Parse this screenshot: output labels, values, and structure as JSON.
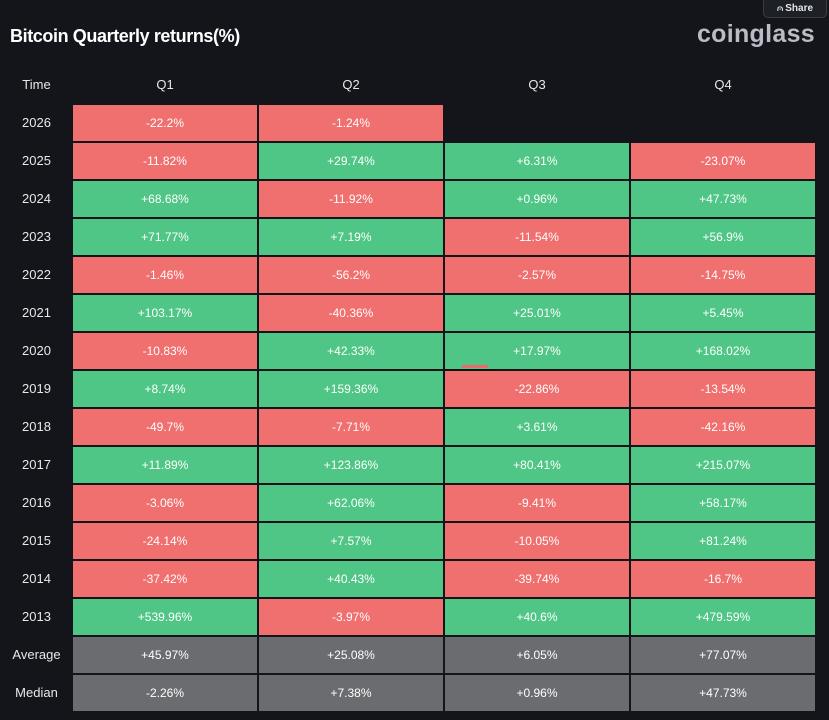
{
  "share_label": "Share",
  "title": "Bitcoin Quarterly returns(%)",
  "brand": "coinglass",
  "colors": {
    "background": "#13151b",
    "positive": "#4fc686",
    "negative": "#f06f6f",
    "stat": "#6b6c70"
  },
  "chart_data": {
    "type": "table",
    "title": "Bitcoin Quarterly returns(%)",
    "columns": [
      "Time",
      "Q1",
      "Q2",
      "Q3",
      "Q4"
    ],
    "rows": [
      {
        "label": "2026",
        "values": [
          "-22.2%",
          "-1.24%",
          "",
          ""
        ]
      },
      {
        "label": "2025",
        "values": [
          "-11.82%",
          "+29.74%",
          "+6.31%",
          "-23.07%"
        ]
      },
      {
        "label": "2024",
        "values": [
          "+68.68%",
          "-11.92%",
          "+0.96%",
          "+47.73%"
        ]
      },
      {
        "label": "2023",
        "values": [
          "+71.77%",
          "+7.19%",
          "-11.54%",
          "+56.9%"
        ]
      },
      {
        "label": "2022",
        "values": [
          "-1.46%",
          "-56.2%",
          "-2.57%",
          "-14.75%"
        ]
      },
      {
        "label": "2021",
        "values": [
          "+103.17%",
          "-40.36%",
          "+25.01%",
          "+5.45%"
        ]
      },
      {
        "label": "2020",
        "values": [
          "-10.83%",
          "+42.33%",
          "+17.97%",
          "+168.02%"
        ]
      },
      {
        "label": "2019",
        "values": [
          "+8.74%",
          "+159.36%",
          "-22.86%",
          "-13.54%"
        ]
      },
      {
        "label": "2018",
        "values": [
          "-49.7%",
          "-7.71%",
          "+3.61%",
          "-42.16%"
        ]
      },
      {
        "label": "2017",
        "values": [
          "+11.89%",
          "+123.86%",
          "+80.41%",
          "+215.07%"
        ]
      },
      {
        "label": "2016",
        "values": [
          "-3.06%",
          "+62.06%",
          "-9.41%",
          "+58.17%"
        ]
      },
      {
        "label": "2015",
        "values": [
          "-24.14%",
          "+7.57%",
          "-10.05%",
          "+81.24%"
        ]
      },
      {
        "label": "2014",
        "values": [
          "-37.42%",
          "+40.43%",
          "-39.74%",
          "-16.7%"
        ]
      },
      {
        "label": "2013",
        "values": [
          "+539.96%",
          "-3.97%",
          "+40.6%",
          "+479.59%"
        ]
      }
    ],
    "stats": [
      {
        "label": "Average",
        "values": [
          "+45.97%",
          "+25.08%",
          "+6.05%",
          "+77.07%"
        ]
      },
      {
        "label": "Median",
        "values": [
          "-2.26%",
          "+7.38%",
          "+0.96%",
          "+47.73%"
        ]
      }
    ]
  }
}
